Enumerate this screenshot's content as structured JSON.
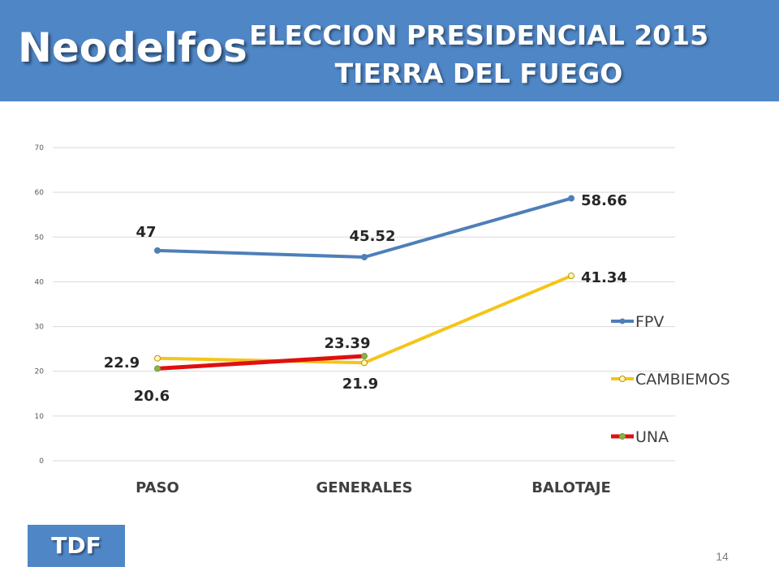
{
  "header": {
    "brand": "Neodelfos",
    "title_line1": "ELECCION PRESIDENCIAL 2015",
    "title_line2": "TIERRA DEL FUEGO"
  },
  "footer": {
    "region_badge": "TDF",
    "page_number": "14"
  },
  "colors": {
    "header_bg": "#4f86c6",
    "FPV": "#4e7fb8",
    "CAMBIEMOS": "#f5c518",
    "UNA": "#e01010"
  },
  "chart_data": {
    "type": "line",
    "categories": [
      "PASO",
      "GENERALES",
      "BALOTAJE"
    ],
    "ylim": [
      0,
      70
    ],
    "yticks": [
      "0",
      "10",
      "20",
      "30",
      "40",
      "50",
      "60",
      "70"
    ],
    "grid": true,
    "legend_position": "right",
    "series": [
      {
        "name": "FPV",
        "values": [
          47,
          45.52,
          58.66
        ],
        "labels": [
          "47",
          "45.52",
          "58.66"
        ]
      },
      {
        "name": "CAMBIEMOS",
        "values": [
          22.9,
          21.9,
          41.34
        ],
        "labels": [
          "22.9",
          "21.9",
          "41.34"
        ]
      },
      {
        "name": "UNA",
        "values": [
          20.6,
          23.39,
          null
        ],
        "labels": [
          "20.6",
          "23.39",
          ""
        ]
      }
    ]
  }
}
